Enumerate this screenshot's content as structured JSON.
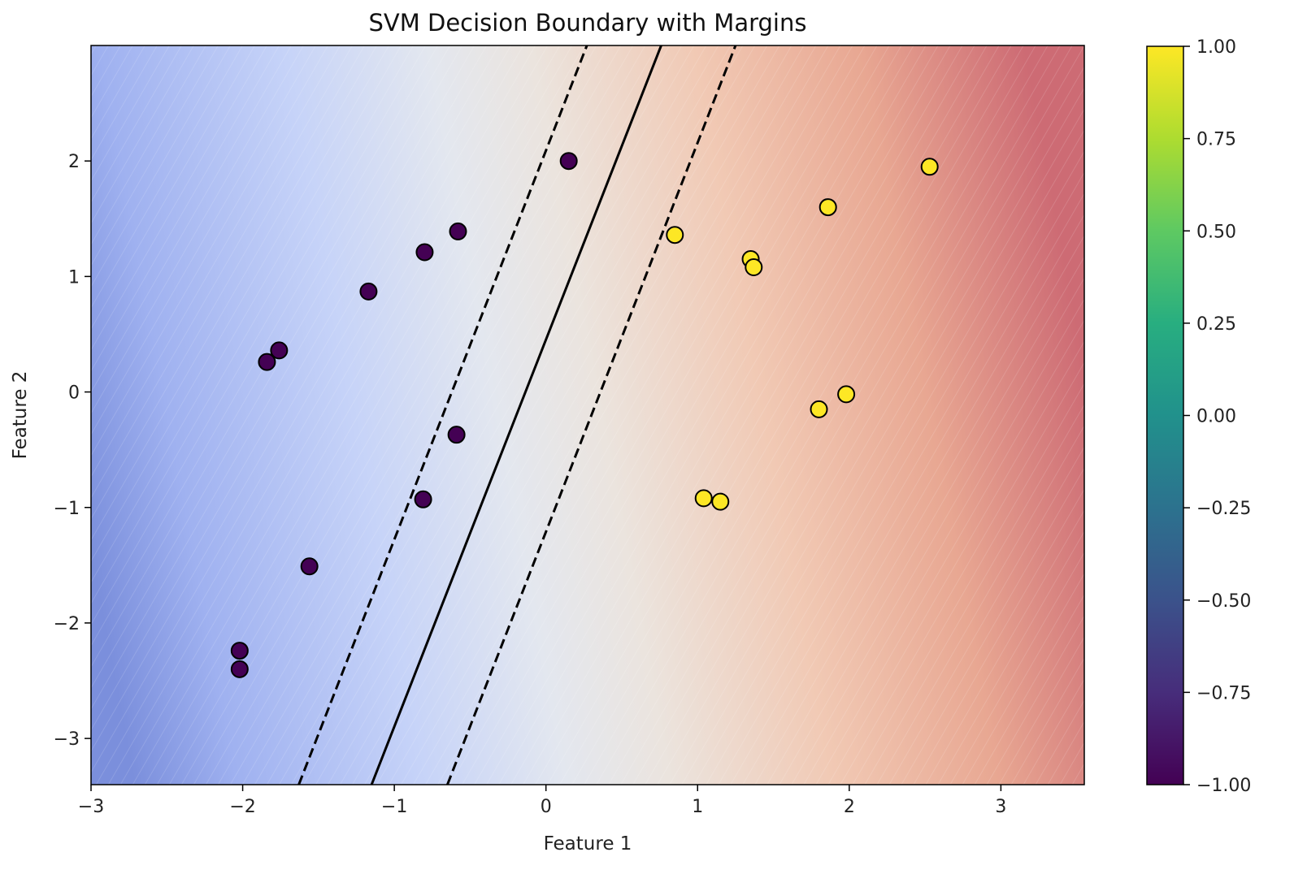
{
  "chart_data": {
    "type": "scatter",
    "title": "SVM Decision Boundary with Margins",
    "xlabel": "Feature 1",
    "ylabel": "Feature 2",
    "xlim": [
      -3.0,
      3.55
    ],
    "ylim": [
      -3.4,
      3.0
    ],
    "xticks": [
      -3,
      -2,
      -1,
      0,
      1,
      2,
      3
    ],
    "yticks": [
      -3,
      -2,
      -1,
      0,
      1,
      2
    ],
    "grid": false,
    "background": {
      "type": "decision-function-contour",
      "colormap": "coolwarm",
      "low_color": "#3b4cc0",
      "mid_color": "#dddddd",
      "high_color": "#b40426"
    },
    "decision_boundary": {
      "line_style": "solid",
      "color": "#000000",
      "points": [
        [
          -1.15,
          -3.4
        ],
        [
          0.76,
          3.0
        ]
      ]
    },
    "margins": [
      {
        "line_style": "dashed",
        "color": "#000000",
        "points": [
          [
            -1.63,
            -3.4
          ],
          [
            0.27,
            3.0
          ]
        ]
      },
      {
        "line_style": "dashed",
        "color": "#000000",
        "points": [
          [
            -0.65,
            -3.4
          ],
          [
            1.25,
            3.0
          ]
        ]
      }
    ],
    "series": [
      {
        "class": -1,
        "color": "#440154",
        "points": [
          [
            0.15,
            2.0
          ],
          [
            -0.58,
            1.39
          ],
          [
            -0.8,
            1.21
          ],
          [
            -1.17,
            0.87
          ],
          [
            -1.76,
            0.36
          ],
          [
            -1.84,
            0.26
          ],
          [
            -0.59,
            -0.37
          ],
          [
            -0.81,
            -0.93
          ],
          [
            -1.56,
            -1.51
          ],
          [
            -2.02,
            -2.24
          ],
          [
            -2.02,
            -2.4
          ]
        ]
      },
      {
        "class": 1,
        "color": "#fde725",
        "points": [
          [
            2.53,
            1.95
          ],
          [
            1.86,
            1.6
          ],
          [
            0.85,
            1.36
          ],
          [
            1.35,
            1.15
          ],
          [
            1.37,
            1.08
          ],
          [
            1.98,
            -0.02
          ],
          [
            1.8,
            -0.15
          ],
          [
            1.04,
            -0.92
          ],
          [
            1.15,
            -0.95
          ]
        ]
      }
    ],
    "colorbar": {
      "colormap": "viridis",
      "range": [
        -1.0,
        1.0
      ],
      "ticks": [
        "1.00",
        "0.75",
        "0.50",
        "0.25",
        "0.00",
        "−0.25",
        "−0.50",
        "−0.75",
        "−1.00"
      ],
      "tick_values": [
        1.0,
        0.75,
        0.5,
        0.25,
        0.0,
        -0.25,
        -0.5,
        -0.75,
        -1.0
      ]
    }
  }
}
